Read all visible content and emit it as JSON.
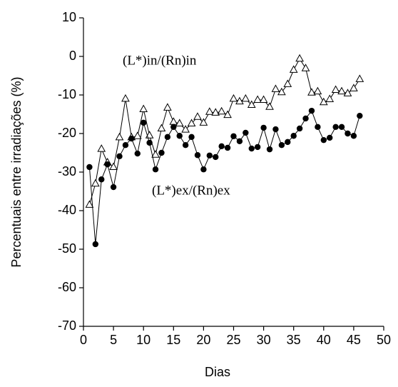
{
  "chart_data": {
    "type": "line",
    "xlabel": "Dias",
    "ylabel": "Percentuais entre irradiações (%)",
    "x": [
      1,
      2,
      3,
      4,
      5,
      6,
      7,
      8,
      9,
      10,
      11,
      12,
      13,
      14,
      15,
      16,
      17,
      18,
      19,
      20,
      21,
      22,
      23,
      24,
      25,
      26,
      27,
      28,
      29,
      30,
      31,
      32,
      33,
      34,
      35,
      36,
      37,
      38,
      39,
      40,
      41,
      42,
      43,
      44,
      45,
      46
    ],
    "series": [
      {
        "name": "(L*)in/(Rn)in",
        "color": "#000000",
        "marker": "triangle",
        "values": [
          -38.5,
          -33,
          -24,
          -27.5,
          -28.7,
          -21,
          -11,
          -21,
          -20.7,
          -13.7,
          -20.5,
          -25.5,
          -18.7,
          -13.3,
          -17,
          -17.4,
          -19,
          -17.4,
          -15.7,
          -17.2,
          -14.4,
          -14.6,
          -14.3,
          -15.2,
          -11,
          -11.7,
          -11,
          -12.6,
          -11.3,
          -11.3,
          -13.1,
          -8.5,
          -9.3,
          -7.2,
          -3.5,
          -0.6,
          -3.1,
          -9.4,
          -9.1,
          -11.9,
          -11.1,
          -8.7,
          -9.1,
          -9.6,
          -8.3,
          -5.9
        ]
      },
      {
        "name": "(L*)ex/(Rn)ex",
        "color": "#000000",
        "marker": "circle",
        "values": [
          -28.7,
          -48.7,
          -31.9,
          -28,
          -33.9,
          -25.9,
          -23,
          -21.3,
          -25.2,
          -17.2,
          -22.4,
          -29.3,
          -25,
          -20.9,
          -18.3,
          -20.6,
          -23,
          -20.9,
          -25.6,
          -29.3,
          -25.7,
          -26.1,
          -23.3,
          -23.7,
          -20.7,
          -22,
          -19.8,
          -23.9,
          -23.5,
          -18.5,
          -24.1,
          -18.9,
          -23,
          -22.2,
          -20.6,
          -18.7,
          -16.1,
          -14.1,
          -18.3,
          -21.7,
          -21.1,
          -18.3,
          -18.3,
          -20,
          -20.6,
          -15.4
        ]
      }
    ],
    "xlim": [
      0,
      50
    ],
    "xticks": [
      0,
      5,
      10,
      15,
      20,
      25,
      30,
      35,
      40,
      45,
      50
    ],
    "ylim": [
      -70,
      10
    ],
    "yticks": [
      -70,
      -60,
      -50,
      -40,
      -30,
      -20,
      -10,
      0,
      10
    ]
  }
}
